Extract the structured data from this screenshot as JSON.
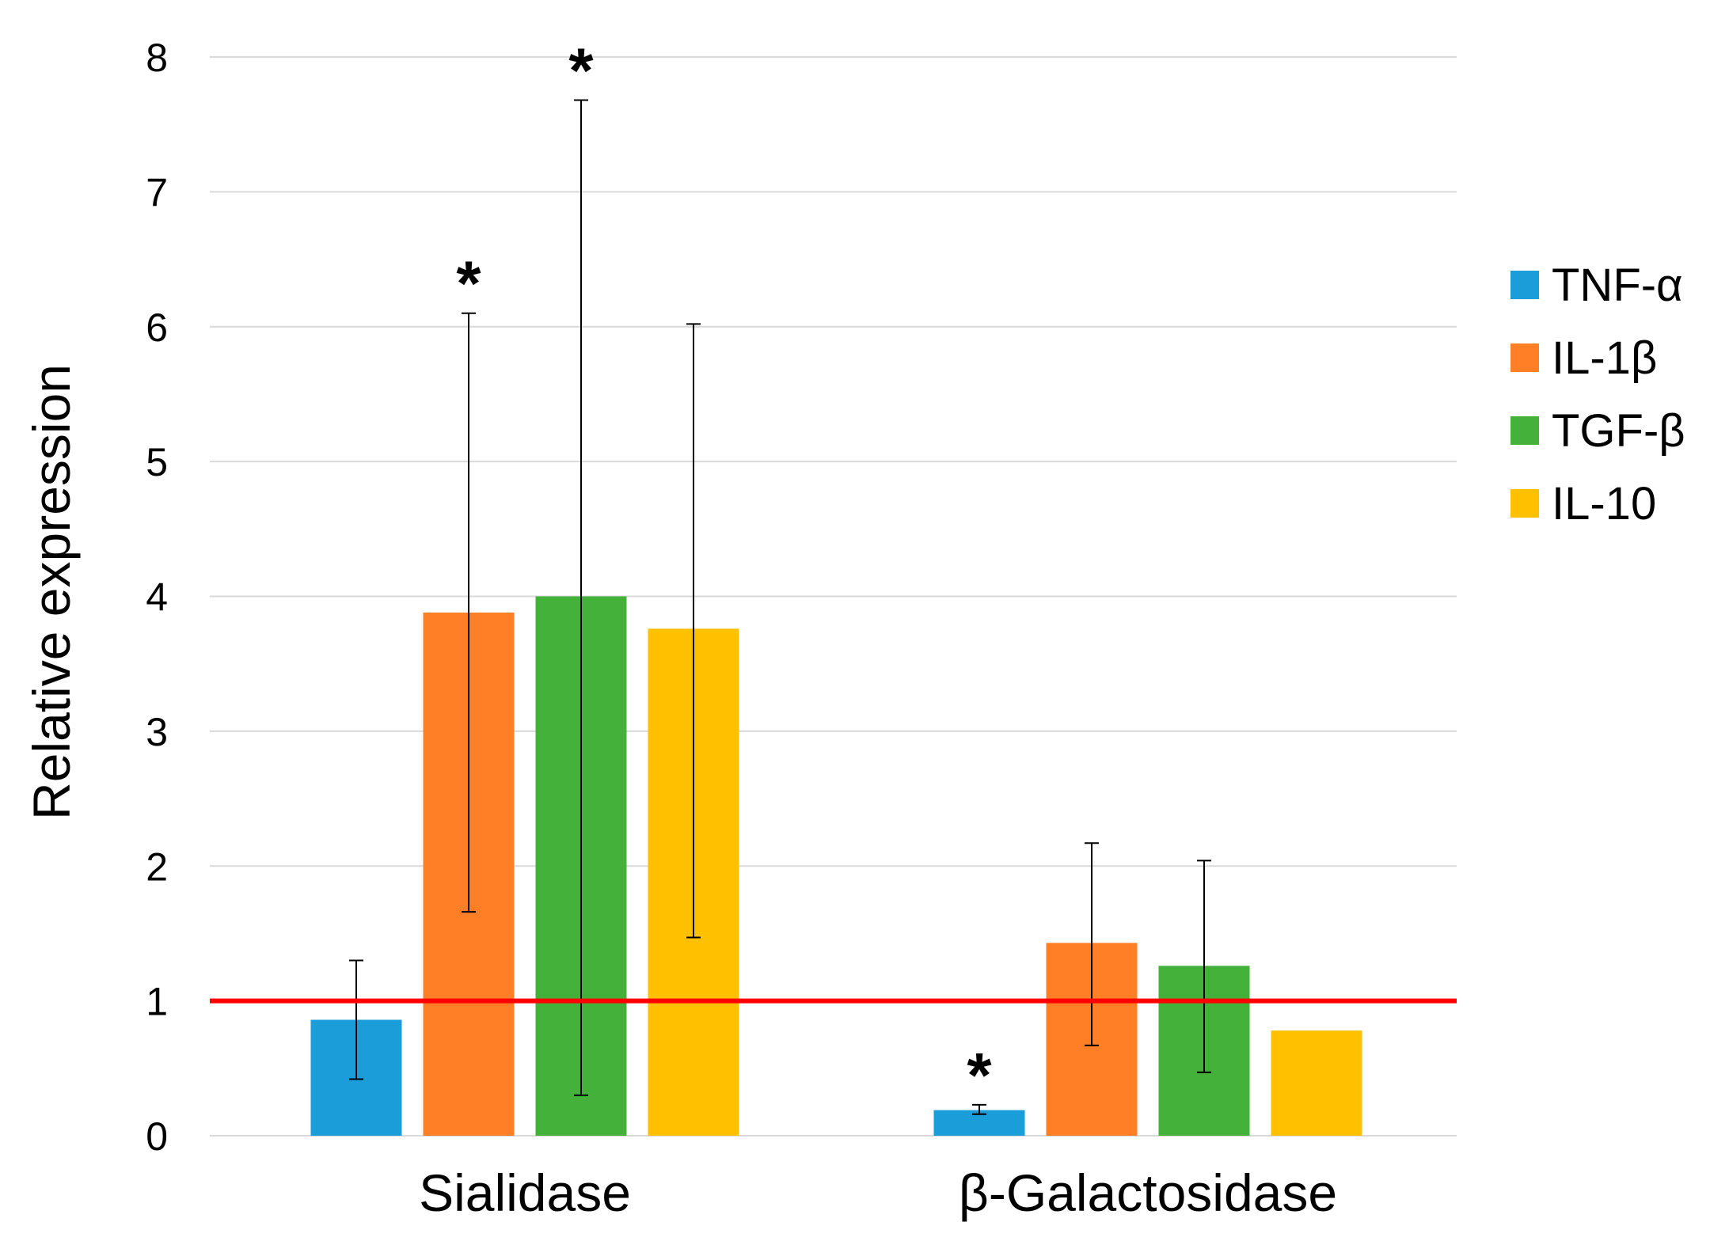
{
  "chart_data": {
    "type": "bar",
    "title": "",
    "xlabel": "",
    "ylabel": "Relative expression",
    "ylim": [
      0,
      8
    ],
    "yticks": [
      "0",
      "1",
      "2",
      "3",
      "4",
      "5",
      "6",
      "7",
      "8"
    ],
    "grid": true,
    "legend_position": "right",
    "categories": [
      "Sialidase",
      "β-Galactosidase"
    ],
    "series": [
      {
        "name": "TNF-α",
        "color": "#1a9dd9",
        "values": [
          0.86,
          0.19
        ],
        "err_low": [
          0.42,
          0.16
        ],
        "err_high": [
          1.3,
          0.23
        ],
        "significant": [
          "",
          "*"
        ]
      },
      {
        "name": "IL-1β",
        "color": "#ff7f27",
        "values": [
          3.88,
          1.43
        ],
        "err_low": [
          1.66,
          0.67
        ],
        "err_high": [
          6.1,
          2.17
        ],
        "significant": [
          "*",
          ""
        ]
      },
      {
        "name": "TGF-β",
        "color": "#43b13a",
        "values": [
          4.0,
          1.26
        ],
        "err_low": [
          0.3,
          0.47
        ],
        "err_high": [
          7.68,
          2.04
        ],
        "significant": [
          "*",
          ""
        ]
      },
      {
        "name": "IL-10",
        "color": "#ffc000",
        "values": [
          3.76,
          0.78
        ],
        "err_low": [
          1.47,
          null
        ],
        "err_high": [
          6.02,
          null
        ],
        "significant": [
          "",
          ""
        ]
      }
    ],
    "reference_line": {
      "value": 1,
      "color": "#ff0000"
    }
  }
}
